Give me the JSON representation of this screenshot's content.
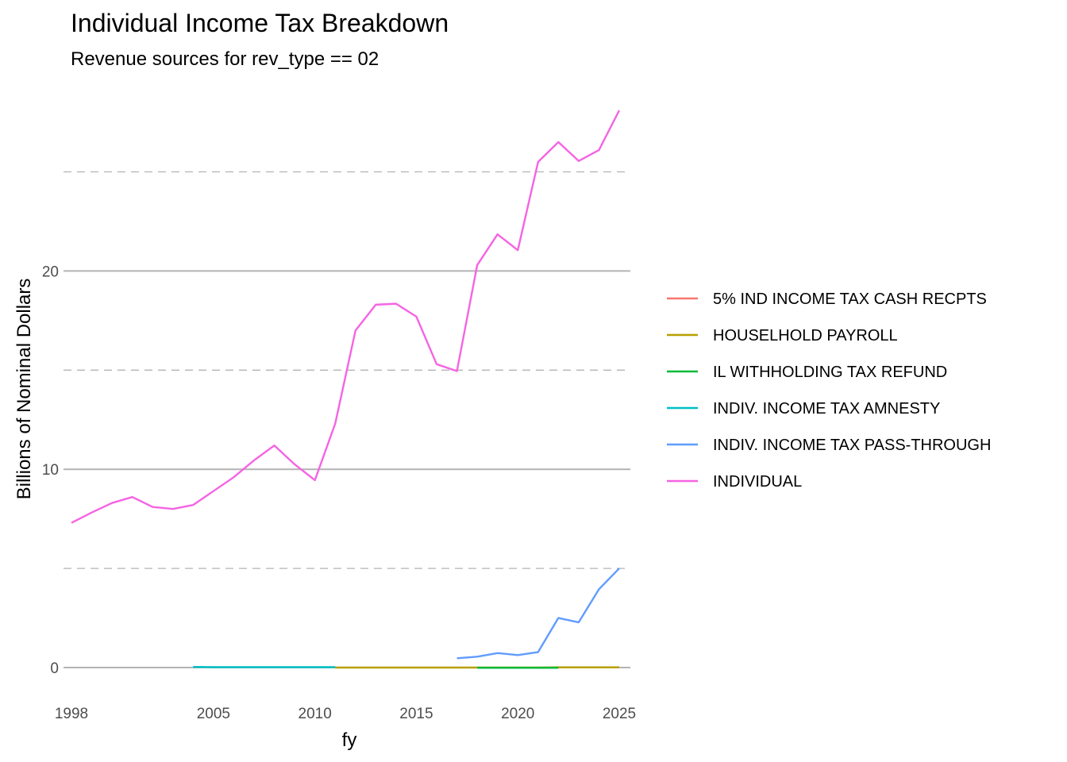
{
  "chart_data": {
    "type": "line",
    "title": "Individual Income Tax  Breakdown",
    "subtitle": "Revenue sources for rev_type == 02",
    "xlabel": "fy",
    "ylabel": "Billions of Nominal Dollars",
    "xlim": [
      1998,
      2025
    ],
    "ylim": [
      -1.2,
      29
    ],
    "x_ticks": [
      1998,
      2005,
      2010,
      2015,
      2020,
      2025
    ],
    "y_ticks": [
      0,
      10,
      20
    ],
    "y_minor": [
      5,
      15,
      25
    ],
    "grid": true,
    "legend_position": "right",
    "series": [
      {
        "name": "5% IND INCOME TAX CASH RECPTS",
        "color": "#F8766D",
        "x": [],
        "y": []
      },
      {
        "name": "HOUSELHOLD PAYROLL",
        "color": "#B79F00",
        "x": [
          2011,
          2012,
          2013,
          2014,
          2015,
          2016,
          2017,
          2018,
          2019,
          2020,
          2021,
          2022,
          2023,
          2024,
          2025
        ],
        "y": [
          0.0,
          0.0,
          0.0,
          0.0,
          0.0,
          0.0,
          0.0,
          0.0,
          0.0,
          0.0,
          0.0,
          0.01,
          0.01,
          0.01,
          0.01
        ]
      },
      {
        "name": "IL WITHHOLDING TAX REFUND",
        "color": "#00BA38",
        "x": [
          2018,
          2019,
          2020,
          2021,
          2022
        ],
        "y": [
          -0.01,
          -0.01,
          -0.01,
          -0.01,
          -0.01
        ]
      },
      {
        "name": "INDIV. INCOME TAX AMNESTY",
        "color": "#00BFC4",
        "x": [
          2004,
          2005,
          2006,
          2007,
          2008,
          2009,
          2010,
          2011
        ],
        "y": [
          0.03,
          0.02,
          0.02,
          0.02,
          0.02,
          0.02,
          0.02,
          0.02
        ]
      },
      {
        "name": "INDIV. INCOME TAX PASS-THROUGH",
        "color": "#619CFF",
        "x": [
          2017,
          2018,
          2019,
          2020,
          2021,
          2022,
          2023,
          2024,
          2025
        ],
        "y": [
          0.47,
          0.55,
          0.73,
          0.63,
          0.78,
          2.5,
          2.28,
          3.95,
          5.0
        ]
      },
      {
        "name": "INDIVIDUAL",
        "color": "#F564E3",
        "x": [
          1998,
          1999,
          2000,
          2001,
          2002,
          2003,
          2004,
          2005,
          2006,
          2007,
          2008,
          2009,
          2010,
          2011,
          2012,
          2013,
          2014,
          2015,
          2016,
          2017,
          2018,
          2019,
          2020,
          2021,
          2022,
          2023,
          2024,
          2025
        ],
        "y": [
          7.3,
          7.82,
          8.3,
          8.6,
          8.1,
          8.0,
          8.2,
          8.9,
          9.6,
          10.45,
          11.2,
          10.25,
          9.45,
          12.3,
          17.0,
          18.3,
          18.35,
          17.7,
          15.3,
          14.95,
          20.3,
          21.85,
          21.05,
          25.5,
          26.5,
          25.55,
          26.1,
          28.1
        ]
      }
    ]
  }
}
